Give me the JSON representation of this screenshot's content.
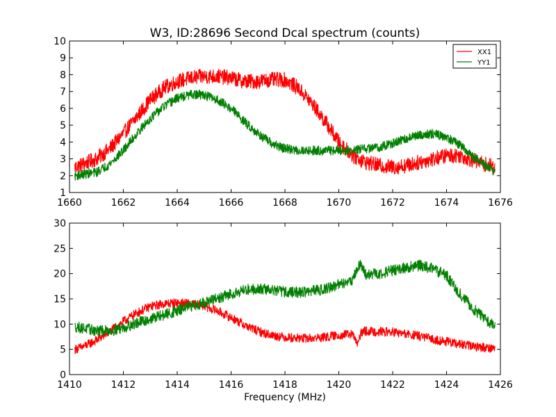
{
  "chart_data": [
    {
      "type": "line",
      "title": "W3, ID:28696 Second Dcal spectrum (counts)",
      "xlabel": "",
      "ylabel": "",
      "xlim": [
        1660,
        1676
      ],
      "ylim": [
        1,
        10
      ],
      "x_ticks": [
        "1660",
        "1662",
        "1664",
        "1666",
        "1668",
        "1670",
        "1672",
        "1674",
        "1676"
      ],
      "y_ticks": [
        "1",
        "2",
        "3",
        "4",
        "5",
        "6",
        "7",
        "8",
        "9",
        "10"
      ],
      "grid": false,
      "legend": {
        "placement": "top-right",
        "entries": [
          "XX1",
          "YY1"
        ]
      },
      "series": [
        {
          "name": "XX1",
          "color": "#ff0000",
          "noise": 0.45,
          "x": [
            1660.2,
            1661.0,
            1661.5,
            1662.0,
            1662.5,
            1663.0,
            1663.5,
            1664.0,
            1664.5,
            1665.0,
            1665.5,
            1666.0,
            1666.5,
            1667.0,
            1667.5,
            1668.0,
            1668.5,
            1669.0,
            1669.5,
            1670.0,
            1670.5,
            1671.0,
            1671.5,
            1672.0,
            1672.5,
            1673.0,
            1673.5,
            1674.0,
            1674.5,
            1675.0,
            1675.8
          ],
          "y": [
            2.5,
            3.0,
            3.6,
            4.5,
            5.5,
            6.5,
            7.2,
            7.6,
            7.8,
            7.9,
            7.9,
            7.8,
            7.6,
            7.6,
            7.7,
            7.7,
            7.2,
            6.3,
            5.2,
            4.0,
            3.2,
            2.8,
            2.6,
            2.5,
            2.6,
            2.8,
            3.0,
            3.2,
            3.2,
            2.9,
            2.5
          ]
        },
        {
          "name": "YY1",
          "color": "#008000",
          "noise": 0.28,
          "x": [
            1660.2,
            1661.0,
            1661.5,
            1662.0,
            1662.5,
            1663.0,
            1663.5,
            1664.0,
            1664.5,
            1665.0,
            1665.5,
            1666.0,
            1666.5,
            1667.0,
            1667.5,
            1668.0,
            1668.5,
            1669.0,
            1669.5,
            1670.0,
            1670.5,
            1671.0,
            1671.5,
            1672.0,
            1672.5,
            1673.0,
            1673.5,
            1674.0,
            1674.5,
            1675.0,
            1675.8
          ],
          "y": [
            2.0,
            2.2,
            2.7,
            3.5,
            4.5,
            5.4,
            6.1,
            6.6,
            6.8,
            6.8,
            6.5,
            6.0,
            5.2,
            4.5,
            3.9,
            3.6,
            3.5,
            3.5,
            3.5,
            3.5,
            3.5,
            3.6,
            3.7,
            3.9,
            4.2,
            4.4,
            4.5,
            4.3,
            3.8,
            3.1,
            2.2
          ]
        }
      ]
    },
    {
      "type": "line",
      "title": "",
      "xlabel": "Frequency (MHz)",
      "ylabel": "",
      "xlim": [
        1410,
        1426
      ],
      "ylim": [
        0,
        30
      ],
      "x_ticks": [
        "1410",
        "1412",
        "1414",
        "1416",
        "1418",
        "1420",
        "1422",
        "1424",
        "1426"
      ],
      "y_ticks": [
        "0",
        "5",
        "10",
        "15",
        "20",
        "25",
        "30"
      ],
      "grid": false,
      "series": [
        {
          "color": "#ff0000",
          "noise": 0.9,
          "x": [
            1410.2,
            1410.5,
            1411.0,
            1411.5,
            1412.0,
            1412.5,
            1413.0,
            1413.5,
            1414.0,
            1414.5,
            1415.0,
            1415.5,
            1416.0,
            1416.5,
            1417.0,
            1417.5,
            1418.0,
            1418.5,
            1419.0,
            1419.5,
            1420.0,
            1420.5,
            1420.7,
            1420.85,
            1421.0,
            1421.5,
            1422.0,
            1422.5,
            1423.0,
            1423.5,
            1424.0,
            1424.5,
            1425.0,
            1425.8
          ],
          "y": [
            5.0,
            5.5,
            6.8,
            8.5,
            10.5,
            12.2,
            13.5,
            14.0,
            14.2,
            14.0,
            13.6,
            12.6,
            11.3,
            9.8,
            8.6,
            7.8,
            7.4,
            7.2,
            7.2,
            7.4,
            7.8,
            8.0,
            6.0,
            8.5,
            8.6,
            8.5,
            8.4,
            8.0,
            7.6,
            7.0,
            6.5,
            6.0,
            5.6,
            5.2
          ]
        },
        {
          "color": "#008000",
          "noise": 1.1,
          "x": [
            1410.2,
            1410.5,
            1411.0,
            1411.5,
            1412.0,
            1412.5,
            1413.0,
            1413.5,
            1414.0,
            1414.5,
            1415.0,
            1415.5,
            1416.0,
            1416.5,
            1417.0,
            1417.5,
            1418.0,
            1418.5,
            1419.0,
            1419.5,
            1420.0,
            1420.5,
            1420.8,
            1421.0,
            1421.5,
            1422.0,
            1422.5,
            1423.0,
            1423.5,
            1424.0,
            1424.5,
            1425.0,
            1425.8
          ],
          "y": [
            9.5,
            9.2,
            8.7,
            8.7,
            9.3,
            10.2,
            11.0,
            11.8,
            12.6,
            13.5,
            14.3,
            15.0,
            16.0,
            16.8,
            17.0,
            16.8,
            16.4,
            16.3,
            16.5,
            17.0,
            17.8,
            18.8,
            22.0,
            19.8,
            20.0,
            20.6,
            21.2,
            21.6,
            21.0,
            19.6,
            16.0,
            13.0,
            9.5
          ]
        }
      ]
    }
  ]
}
